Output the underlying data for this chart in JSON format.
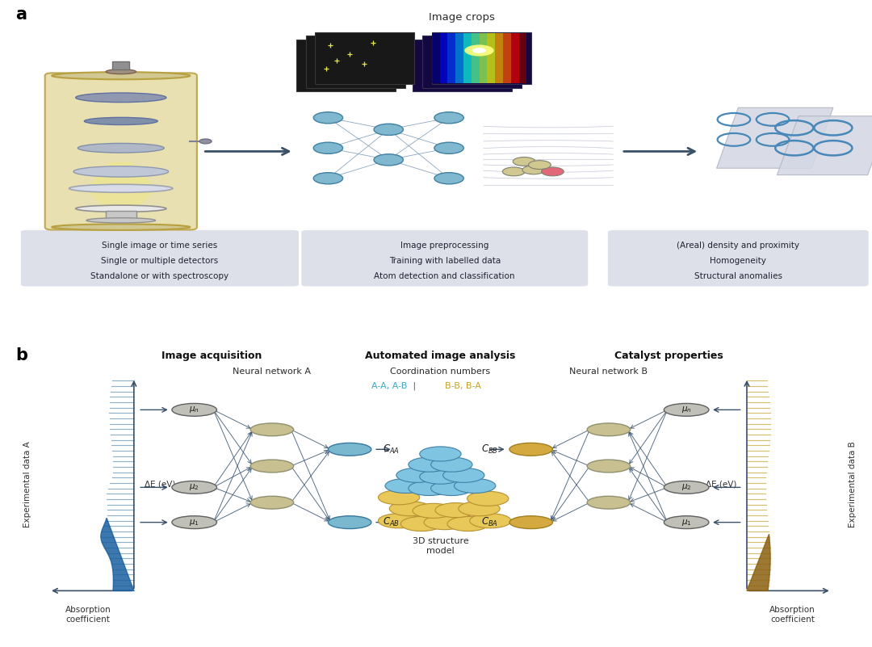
{
  "bg_color": "#ffffff",
  "arrow_color": "#3a5068",
  "node_color_sand": "#c8c090",
  "node_color_blue_a": "#7ab8d0",
  "node_color_gold_b": "#d4aa40",
  "node_color_grey": "#a8a8a0",
  "node_edge_sand": "#909070",
  "node_edge_grey": "#707070",
  "section_titles_b": [
    "Image acquisition",
    "Automated image analysis",
    "Catalyst properties"
  ],
  "nn_title_a": "Neural network A",
  "nn_title_b": "Neural network B",
  "coord_title": "Coordination numbers",
  "box1_lines": [
    "Single image or time series",
    "Single or multiple detectors",
    "Standalone or with spectroscopy"
  ],
  "box2_lines": [
    "Image preprocessing",
    "Training with labelled data",
    "Atom detection and classification"
  ],
  "box3_lines": [
    "(Areal) density and proximity",
    "Homogeneity",
    "Structural anomalies"
  ],
  "img_crops_label": "Image crops",
  "struct_label": "3D structure\nmodel",
  "xray_label_a": "Experimental data A",
  "xray_label_b": "Experimental data B",
  "delta_e_label": "ΔE (eV)",
  "abs_coef_label": "Absorption\ncoefficient"
}
